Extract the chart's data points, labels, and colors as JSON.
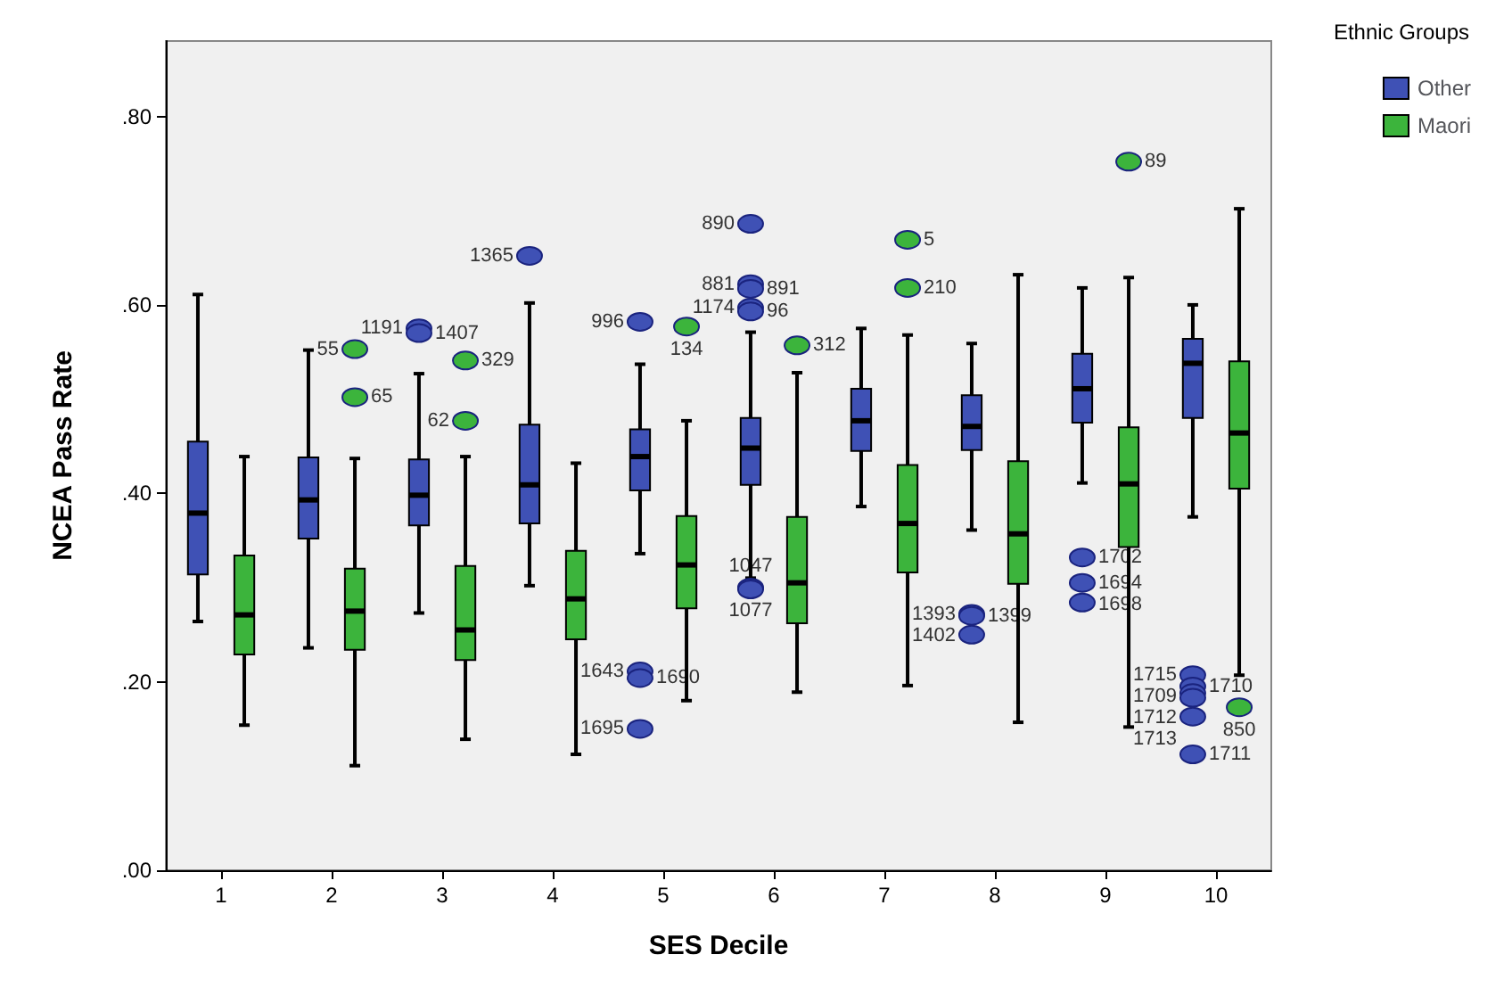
{
  "chart_data": {
    "type": "box",
    "xlabel": "SES Decile",
    "ylabel": "NCEA Pass Rate",
    "legend_title": "Ethnic Groups",
    "legend": "top right",
    "grid": false,
    "categories": [
      "1",
      "2",
      "3",
      "4",
      "5",
      "6",
      "7",
      "8",
      "9",
      "10"
    ],
    "ylim": [
      0,
      0.88
    ],
    "yticks": [
      {
        "value": 0,
        "label": ".00"
      },
      {
        "value": 0.2,
        "label": ".20"
      },
      {
        "value": 0.4,
        "label": ".40"
      },
      {
        "value": 0.6,
        "label": ".60"
      },
      {
        "value": 0.8,
        "label": ".80"
      }
    ],
    "series": [
      {
        "name": "Other",
        "color": "#3f51b5",
        "boxes": [
          {
            "low": 0.264,
            "q1": 0.314,
            "median": 0.379,
            "q3": 0.455,
            "high": 0.611
          },
          {
            "low": 0.236,
            "q1": 0.352,
            "median": 0.393,
            "q3": 0.438,
            "high": 0.552
          },
          {
            "low": 0.273,
            "q1": 0.366,
            "median": 0.398,
            "q3": 0.436,
            "high": 0.527,
            "outliers": [
              0.575,
              0.57
            ]
          },
          {
            "low": 0.302,
            "q1": 0.368,
            "median": 0.409,
            "q3": 0.473,
            "high": 0.602,
            "outliers": [
              0.652
            ]
          },
          {
            "low": 0.336,
            "q1": 0.403,
            "median": 0.439,
            "q3": 0.468,
            "high": 0.537,
            "outliers": [
              0.582,
              0.211,
              0.204,
              0.15
            ]
          },
          {
            "low": 0.31,
            "q1": 0.409,
            "median": 0.448,
            "q3": 0.48,
            "high": 0.571,
            "outliers": [
              0.686,
              0.622,
              0.617,
              0.597,
              0.593,
              0.3,
              0.298
            ]
          },
          {
            "low": 0.386,
            "q1": 0.445,
            "median": 0.477,
            "q3": 0.511,
            "high": 0.575
          },
          {
            "low": 0.361,
            "q1": 0.446,
            "median": 0.471,
            "q3": 0.504,
            "high": 0.559,
            "outliers": [
              0.272,
              0.27,
              0.25
            ]
          },
          {
            "low": 0.411,
            "q1": 0.475,
            "median": 0.511,
            "q3": 0.548,
            "high": 0.618,
            "outliers": [
              0.332,
              0.305,
              0.284
            ]
          },
          {
            "low": 0.375,
            "q1": 0.48,
            "median": 0.538,
            "q3": 0.564,
            "high": 0.6,
            "outliers": [
              0.207,
              0.195,
              0.188,
              0.183,
              0.163,
              0.123
            ]
          }
        ]
      },
      {
        "name": "Maori",
        "color": "#3cb43c",
        "boxes": [
          {
            "low": 0.154,
            "q1": 0.229,
            "median": 0.271,
            "q3": 0.334,
            "high": 0.439
          },
          {
            "low": 0.111,
            "q1": 0.234,
            "median": 0.275,
            "q3": 0.32,
            "high": 0.437,
            "outliers": [
              0.553,
              0.502
            ]
          },
          {
            "low": 0.139,
            "q1": 0.223,
            "median": 0.255,
            "q3": 0.323,
            "high": 0.439,
            "outliers": [
              0.541,
              0.477
            ]
          },
          {
            "low": 0.123,
            "q1": 0.245,
            "median": 0.288,
            "q3": 0.339,
            "high": 0.432
          },
          {
            "low": 0.18,
            "q1": 0.278,
            "median": 0.324,
            "q3": 0.376,
            "high": 0.477,
            "outliers": [
              0.577
            ]
          },
          {
            "low": 0.189,
            "q1": 0.262,
            "median": 0.305,
            "q3": 0.375,
            "high": 0.528,
            "outliers": [
              0.557
            ]
          },
          {
            "low": 0.196,
            "q1": 0.316,
            "median": 0.368,
            "q3": 0.43,
            "high": 0.568,
            "outliers": [
              0.669,
              0.618
            ]
          },
          {
            "low": 0.157,
            "q1": 0.304,
            "median": 0.357,
            "q3": 0.434,
            "high": 0.632
          },
          {
            "low": 0.152,
            "q1": 0.343,
            "median": 0.41,
            "q3": 0.47,
            "high": 0.629,
            "outliers": [
              0.752
            ]
          },
          {
            "low": 0.207,
            "q1": 0.405,
            "median": 0.464,
            "q3": 0.54,
            "high": 0.702,
            "outliers": [
              0.173
            ]
          }
        ]
      }
    ],
    "annotations": [
      "1191",
      "1407",
      "1365",
      "996",
      "1643",
      "1690",
      "1695",
      "890",
      "881",
      "891",
      "1174",
      "96",
      "1077",
      "1047",
      "1393",
      "1399",
      "1402",
      "1702",
      "1694",
      "1698",
      "1715",
      "1710",
      "1709",
      "1712",
      "1713",
      "1711",
      "55",
      "65",
      "329",
      "62",
      "134",
      "312",
      "5",
      "210",
      "89",
      "850"
    ]
  }
}
